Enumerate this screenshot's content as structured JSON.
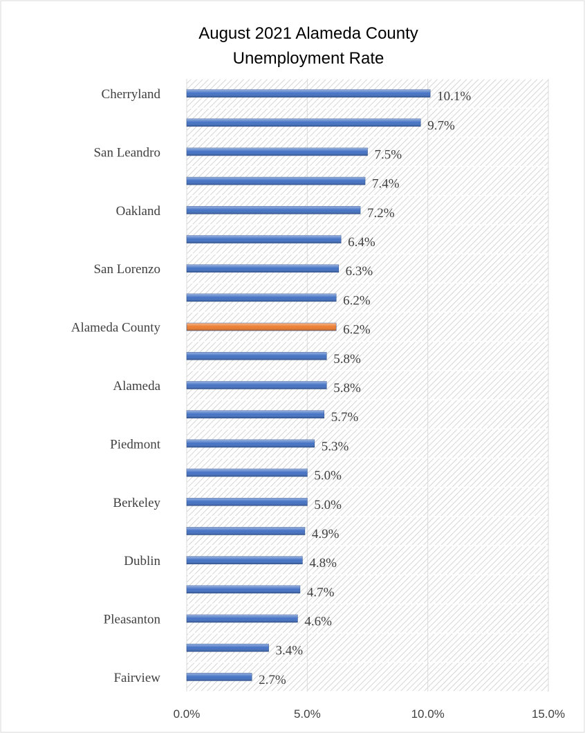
{
  "chart_data": {
    "type": "barh",
    "title": [
      "August 2021 Alameda County",
      "Unemployment Rate"
    ],
    "categories": [
      "Cherryland",
      null,
      "San Leandro",
      null,
      "Oakland",
      null,
      "San Lorenzo",
      null,
      "Alameda County",
      null,
      "Alameda",
      null,
      "Piedmont",
      null,
      "Berkeley",
      null,
      "Dublin",
      null,
      "Pleasanton",
      null,
      "Fairview"
    ],
    "values": [
      10.1,
      9.7,
      7.5,
      7.4,
      7.2,
      6.4,
      6.3,
      6.2,
      6.2,
      5.8,
      5.8,
      5.7,
      5.3,
      5.0,
      5.0,
      4.9,
      4.8,
      4.7,
      4.6,
      3.4,
      2.7
    ],
    "value_labels": [
      "10.1%",
      "9.7%",
      "7.5%",
      "7.4%",
      "7.2%",
      "6.4%",
      "6.3%",
      "6.2%",
      "6.2%",
      "5.8%",
      "5.8%",
      "5.7%",
      "5.3%",
      "5.0%",
      "5.0%",
      "4.9%",
      "4.8%",
      "4.7%",
      "4.6%",
      "3.4%",
      "2.7%"
    ],
    "colors": [
      "#4472c4",
      "#4472c4",
      "#4472c4",
      "#4472c4",
      "#4472c4",
      "#4472c4",
      "#4472c4",
      "#4472c4",
      "#ed7d31",
      "#4472c4",
      "#4472c4",
      "#4472c4",
      "#4472c4",
      "#4472c4",
      "#4472c4",
      "#4472c4",
      "#4472c4",
      "#4472c4",
      "#4472c4",
      "#4472c4",
      "#4472c4"
    ],
    "xlim": [
      0,
      15
    ],
    "xticks": [
      {
        "value": 0,
        "label": "0.0%"
      },
      {
        "value": 5,
        "label": "5.0%"
      },
      {
        "value": 10,
        "label": "10.0%"
      },
      {
        "value": 15,
        "label": "15.0%"
      }
    ],
    "grid": true
  }
}
